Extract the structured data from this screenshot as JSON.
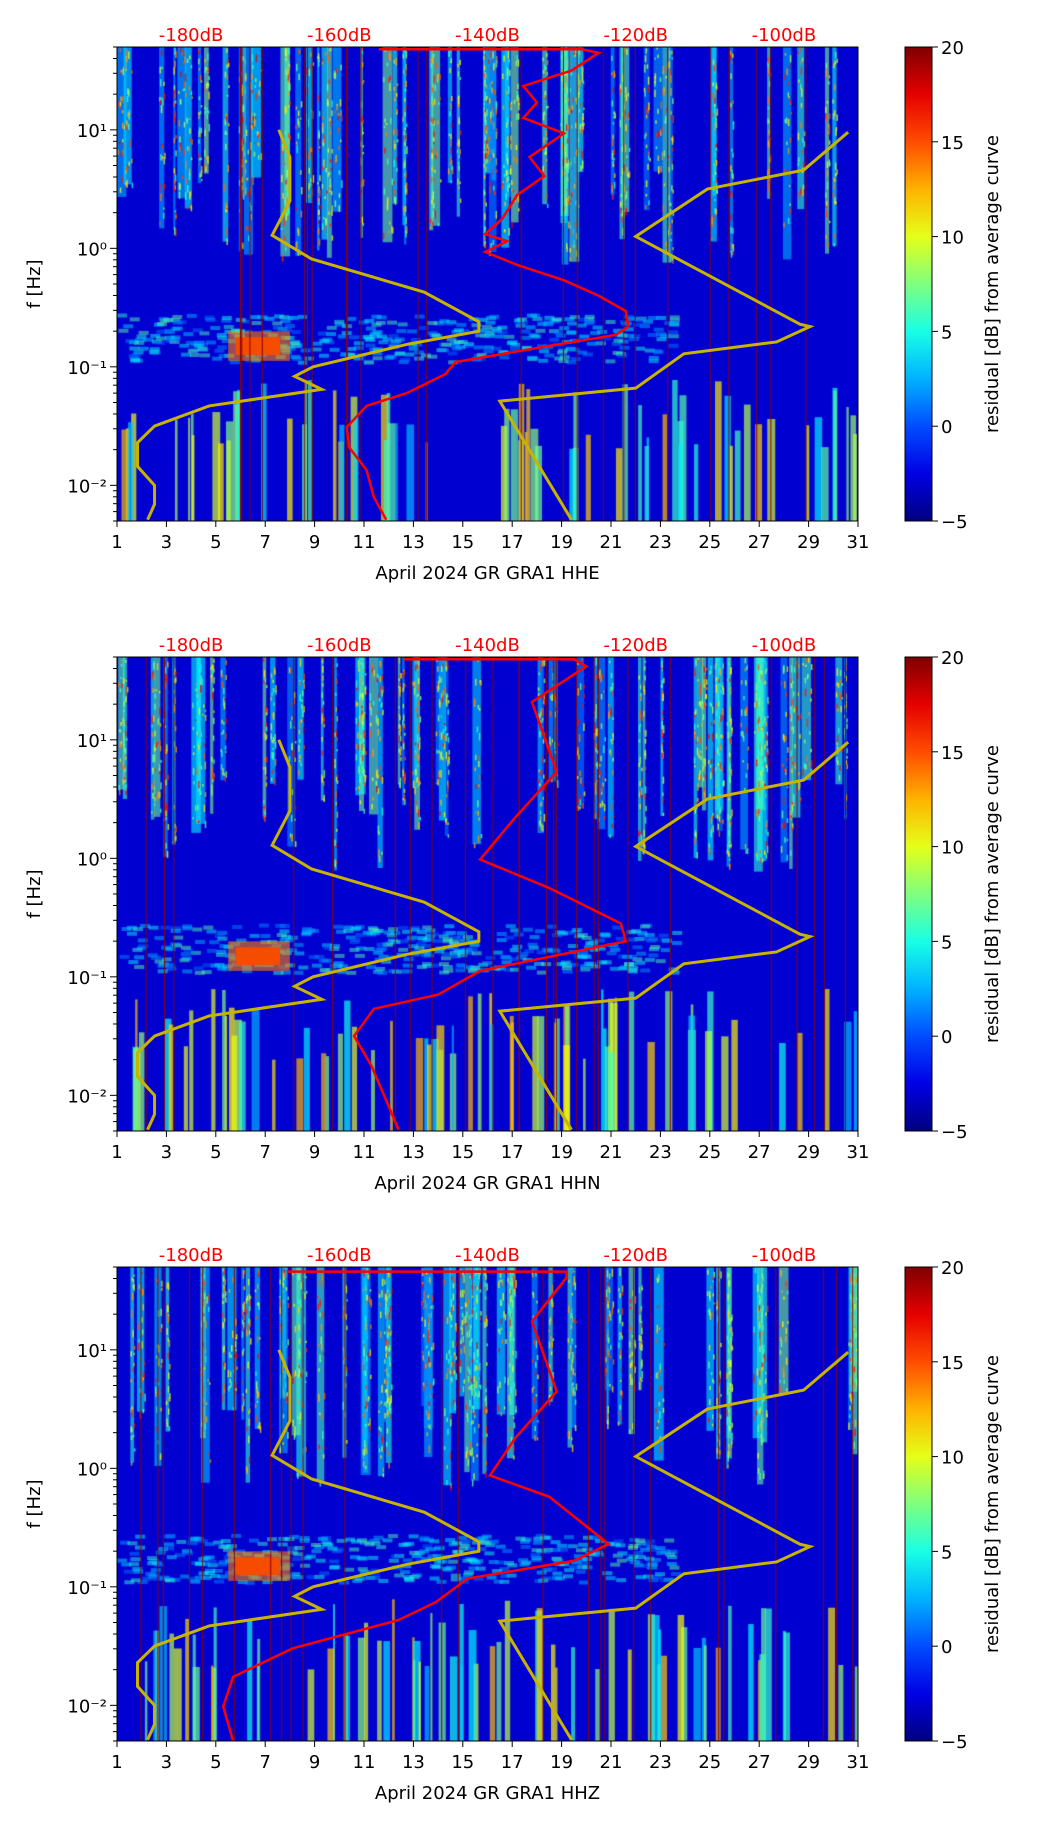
{
  "chart_data": [
    {
      "type": "heatmap",
      "title": "",
      "xlabel": "April 2024 GR GRA1  HHE",
      "ylabel": "f [Hz]",
      "colorbar_label": "residual [dB] from average curve",
      "colorbar_ticks": [
        "−5",
        "0",
        "5",
        "10",
        "15",
        "20"
      ],
      "colorbar_range": [
        -5,
        20
      ],
      "x_ticks": [
        "1",
        "3",
        "5",
        "7",
        "9",
        "11",
        "13",
        "15",
        "17",
        "19",
        "21",
        "23",
        "25",
        "27",
        "29",
        "31"
      ],
      "xlim": [
        1,
        31
      ],
      "y_scale": "log",
      "ylim": [
        0.005,
        50
      ],
      "y_ticks": [
        {
          "v": -2,
          "label": "10⁻²"
        },
        {
          "v": -1,
          "label": "10⁻¹"
        },
        {
          "v": 0,
          "label": "10⁰"
        },
        {
          "v": 1,
          "label": "10¹"
        }
      ],
      "top_axis": {
        "labels": [
          "-180dB",
          "-160dB",
          "-140dB",
          "-120dB",
          "-100dB"
        ],
        "day_positions": [
          4,
          10,
          16,
          22,
          28
        ],
        "color": "#ff0000"
      },
      "series": [
        {
          "name": "average PSD",
          "color": "#ff0000",
          "points_day_log10f": [
            [
              11.6,
              1.68
            ],
            [
              19.8,
              1.68
            ],
            [
              20.5,
              1.65
            ],
            [
              19.4,
              1.5
            ],
            [
              17.45,
              1.37
            ],
            [
              18.0,
              1.23
            ],
            [
              17.45,
              1.1
            ],
            [
              19.1,
              0.97
            ],
            [
              17.7,
              0.77
            ],
            [
              18.3,
              0.61
            ],
            [
              17.2,
              0.45
            ],
            [
              16.6,
              0.25
            ],
            [
              15.9,
              0.12
            ],
            [
              16.8,
              0.06
            ],
            [
              15.9,
              -0.03
            ],
            [
              17.2,
              -0.14
            ],
            [
              19.1,
              -0.27
            ],
            [
              20.5,
              -0.4
            ],
            [
              21.6,
              -0.53
            ],
            [
              21.7,
              -0.66
            ],
            [
              21.2,
              -0.73
            ],
            [
              18.3,
              -0.83
            ],
            [
              14.7,
              -0.96
            ],
            [
              14.3,
              -1.06
            ],
            [
              12.75,
              -1.22
            ],
            [
              11.1,
              -1.33
            ],
            [
              10.3,
              -1.51
            ],
            [
              10.4,
              -1.68
            ],
            [
              11.1,
              -1.87
            ],
            [
              11.4,
              -2.1
            ],
            [
              11.9,
              -2.29
            ]
          ]
        },
        {
          "name": "low noise model",
          "color": "#c8b400",
          "points_day_log10f": [
            [
              7.55,
              1.0
            ],
            [
              8.0,
              0.77
            ],
            [
              8.0,
              0.4
            ],
            [
              7.28,
              0.11
            ],
            [
              8.88,
              -0.09
            ],
            [
              13.44,
              -0.37
            ],
            [
              15.65,
              -0.62
            ],
            [
              15.65,
              -0.7
            ],
            [
              12.75,
              -0.81
            ],
            [
              8.94,
              -1.0
            ],
            [
              8.19,
              -1.08
            ],
            [
              9.29,
              -1.19
            ],
            [
              4.73,
              -1.33
            ],
            [
              2.52,
              -1.5
            ],
            [
              1.83,
              -1.64
            ],
            [
              1.83,
              -1.84
            ],
            [
              2.52,
              -2.0
            ],
            [
              2.52,
              -2.16
            ],
            [
              2.24,
              -2.29
            ]
          ]
        },
        {
          "name": "high noise model",
          "color": "#c8b400",
          "points_day_log10f": [
            [
              30.6,
              0.98
            ],
            [
              28.8,
              0.66
            ],
            [
              24.9,
              0.5
            ],
            [
              22.0,
              0.1
            ],
            [
              28.65,
              -0.64
            ],
            [
              29.06,
              -0.66
            ],
            [
              27.7,
              -0.79
            ],
            [
              23.95,
              -0.89
            ],
            [
              22.0,
              -1.18
            ],
            [
              16.5,
              -1.29
            ],
            [
              19.4,
              -2.29
            ]
          ]
        }
      ]
    },
    {
      "type": "heatmap",
      "title": "",
      "xlabel": "April 2024 GR GRA1  HHN",
      "ylabel": "f [Hz]",
      "colorbar_label": "residual [dB] from average curve",
      "colorbar_ticks": [
        "−5",
        "0",
        "5",
        "10",
        "15",
        "20"
      ],
      "colorbar_range": [
        -5,
        20
      ],
      "x_ticks": [
        "1",
        "3",
        "5",
        "7",
        "9",
        "11",
        "13",
        "15",
        "17",
        "19",
        "21",
        "23",
        "25",
        "27",
        "29",
        "31"
      ],
      "xlim": [
        1,
        31
      ],
      "y_scale": "log",
      "ylim": [
        0.005,
        50
      ],
      "y_ticks": [
        {
          "v": -2,
          "label": "10⁻²"
        },
        {
          "v": -1,
          "label": "10⁻¹"
        },
        {
          "v": 0,
          "label": "10⁰"
        },
        {
          "v": 1,
          "label": "10¹"
        }
      ],
      "top_axis": {
        "labels": [
          "-180dB",
          "-160dB",
          "-140dB",
          "-120dB",
          "-100dB"
        ],
        "day_positions": [
          4,
          10,
          16,
          22,
          28
        ],
        "color": "#ff0000"
      },
      "series": [
        {
          "name": "average PSD",
          "color": "#ff0000",
          "points_day_log10f": [
            [
              12.6,
              1.68
            ],
            [
              19.5,
              1.68
            ],
            [
              20.0,
              1.62
            ],
            [
              17.8,
              1.32
            ],
            [
              18.8,
              0.73
            ],
            [
              17.1,
              0.34
            ],
            [
              15.7,
              -0.01
            ],
            [
              18.5,
              -0.25
            ],
            [
              21.4,
              -0.55
            ],
            [
              21.6,
              -0.7
            ],
            [
              15.7,
              -0.95
            ],
            [
              14.0,
              -1.15
            ],
            [
              11.4,
              -1.27
            ],
            [
              10.6,
              -1.5
            ],
            [
              11.3,
              -1.75
            ],
            [
              12.4,
              -2.29
            ]
          ]
        },
        {
          "name": "low noise model",
          "color": "#c8b400",
          "points_day_log10f": [
            [
              7.55,
              1.0
            ],
            [
              8.0,
              0.77
            ],
            [
              8.0,
              0.4
            ],
            [
              7.28,
              0.11
            ],
            [
              8.88,
              -0.09
            ],
            [
              13.44,
              -0.37
            ],
            [
              15.65,
              -0.62
            ],
            [
              15.65,
              -0.7
            ],
            [
              12.75,
              -0.81
            ],
            [
              8.94,
              -1.0
            ],
            [
              8.19,
              -1.08
            ],
            [
              9.29,
              -1.19
            ],
            [
              4.73,
              -1.33
            ],
            [
              2.52,
              -1.5
            ],
            [
              1.83,
              -1.64
            ],
            [
              1.83,
              -1.84
            ],
            [
              2.52,
              -2.0
            ],
            [
              2.52,
              -2.16
            ],
            [
              2.24,
              -2.29
            ]
          ]
        },
        {
          "name": "high noise model",
          "color": "#c8b400",
          "points_day_log10f": [
            [
              30.6,
              0.98
            ],
            [
              28.8,
              0.66
            ],
            [
              24.9,
              0.5
            ],
            [
              22.0,
              0.1
            ],
            [
              28.65,
              -0.64
            ],
            [
              29.06,
              -0.66
            ],
            [
              27.7,
              -0.79
            ],
            [
              23.95,
              -0.89
            ],
            [
              22.0,
              -1.18
            ],
            [
              16.5,
              -1.29
            ],
            [
              19.4,
              -2.29
            ]
          ]
        }
      ]
    },
    {
      "type": "heatmap",
      "title": "",
      "xlabel": "April 2024 GR GRA1  HHZ",
      "ylabel": "f [Hz]",
      "colorbar_label": "residual [dB] from average curve",
      "colorbar_ticks": [
        "−5",
        "0",
        "5",
        "10",
        "15",
        "20"
      ],
      "colorbar_range": [
        -5,
        20
      ],
      "x_ticks": [
        "1",
        "3",
        "5",
        "7",
        "9",
        "11",
        "13",
        "15",
        "17",
        "19",
        "21",
        "23",
        "25",
        "27",
        "29",
        "31"
      ],
      "xlim": [
        1,
        31
      ],
      "y_scale": "log",
      "ylim": [
        0.005,
        50
      ],
      "y_ticks": [
        {
          "v": -2,
          "label": "10⁻²"
        },
        {
          "v": -1,
          "label": "10⁻¹"
        },
        {
          "v": 0,
          "label": "10⁰"
        },
        {
          "v": 1,
          "label": "10¹"
        }
      ],
      "top_axis": {
        "labels": [
          "-180dB",
          "-160dB",
          "-140dB",
          "-120dB",
          "-100dB"
        ],
        "day_positions": [
          4,
          10,
          16,
          22,
          28
        ],
        "color": "#ff0000"
      },
      "series": [
        {
          "name": "average PSD",
          "color": "#ff0000",
          "points_day_log10f": [
            [
              7.9,
              1.66
            ],
            [
              19.2,
              1.66
            ],
            [
              19.2,
              1.61
            ],
            [
              17.8,
              1.24
            ],
            [
              18.8,
              0.65
            ],
            [
              17.1,
              0.25
            ],
            [
              16.1,
              -0.06
            ],
            [
              18.5,
              -0.24
            ],
            [
              20.9,
              -0.64
            ],
            [
              19.5,
              -0.78
            ],
            [
              15.2,
              -0.93
            ],
            [
              13.9,
              -1.13
            ],
            [
              12.4,
              -1.28
            ],
            [
              8.1,
              -1.52
            ],
            [
              5.7,
              -1.76
            ],
            [
              5.3,
              -2.01
            ],
            [
              5.7,
              -2.3
            ]
          ]
        },
        {
          "name": "low noise model",
          "color": "#c8b400",
          "points_day_log10f": [
            [
              7.55,
              1.0
            ],
            [
              8.0,
              0.77
            ],
            [
              8.0,
              0.4
            ],
            [
              7.28,
              0.11
            ],
            [
              8.88,
              -0.09
            ],
            [
              13.44,
              -0.37
            ],
            [
              15.65,
              -0.62
            ],
            [
              15.65,
              -0.7
            ],
            [
              12.75,
              -0.81
            ],
            [
              8.94,
              -1.0
            ],
            [
              8.19,
              -1.08
            ],
            [
              9.29,
              -1.19
            ],
            [
              4.73,
              -1.33
            ],
            [
              2.52,
              -1.5
            ],
            [
              1.83,
              -1.64
            ],
            [
              1.83,
              -1.84
            ],
            [
              2.52,
              -2.0
            ],
            [
              2.52,
              -2.16
            ],
            [
              2.24,
              -2.29
            ]
          ]
        },
        {
          "name": "high noise model",
          "color": "#c8b400",
          "points_day_log10f": [
            [
              30.6,
              0.98
            ],
            [
              28.8,
              0.66
            ],
            [
              24.9,
              0.5
            ],
            [
              22.0,
              0.1
            ],
            [
              28.65,
              -0.64
            ],
            [
              29.06,
              -0.66
            ],
            [
              27.7,
              -0.79
            ],
            [
              23.95,
              -0.89
            ],
            [
              22.0,
              -1.18
            ],
            [
              16.5,
              -1.29
            ],
            [
              19.4,
              -2.29
            ]
          ]
        }
      ]
    }
  ]
}
